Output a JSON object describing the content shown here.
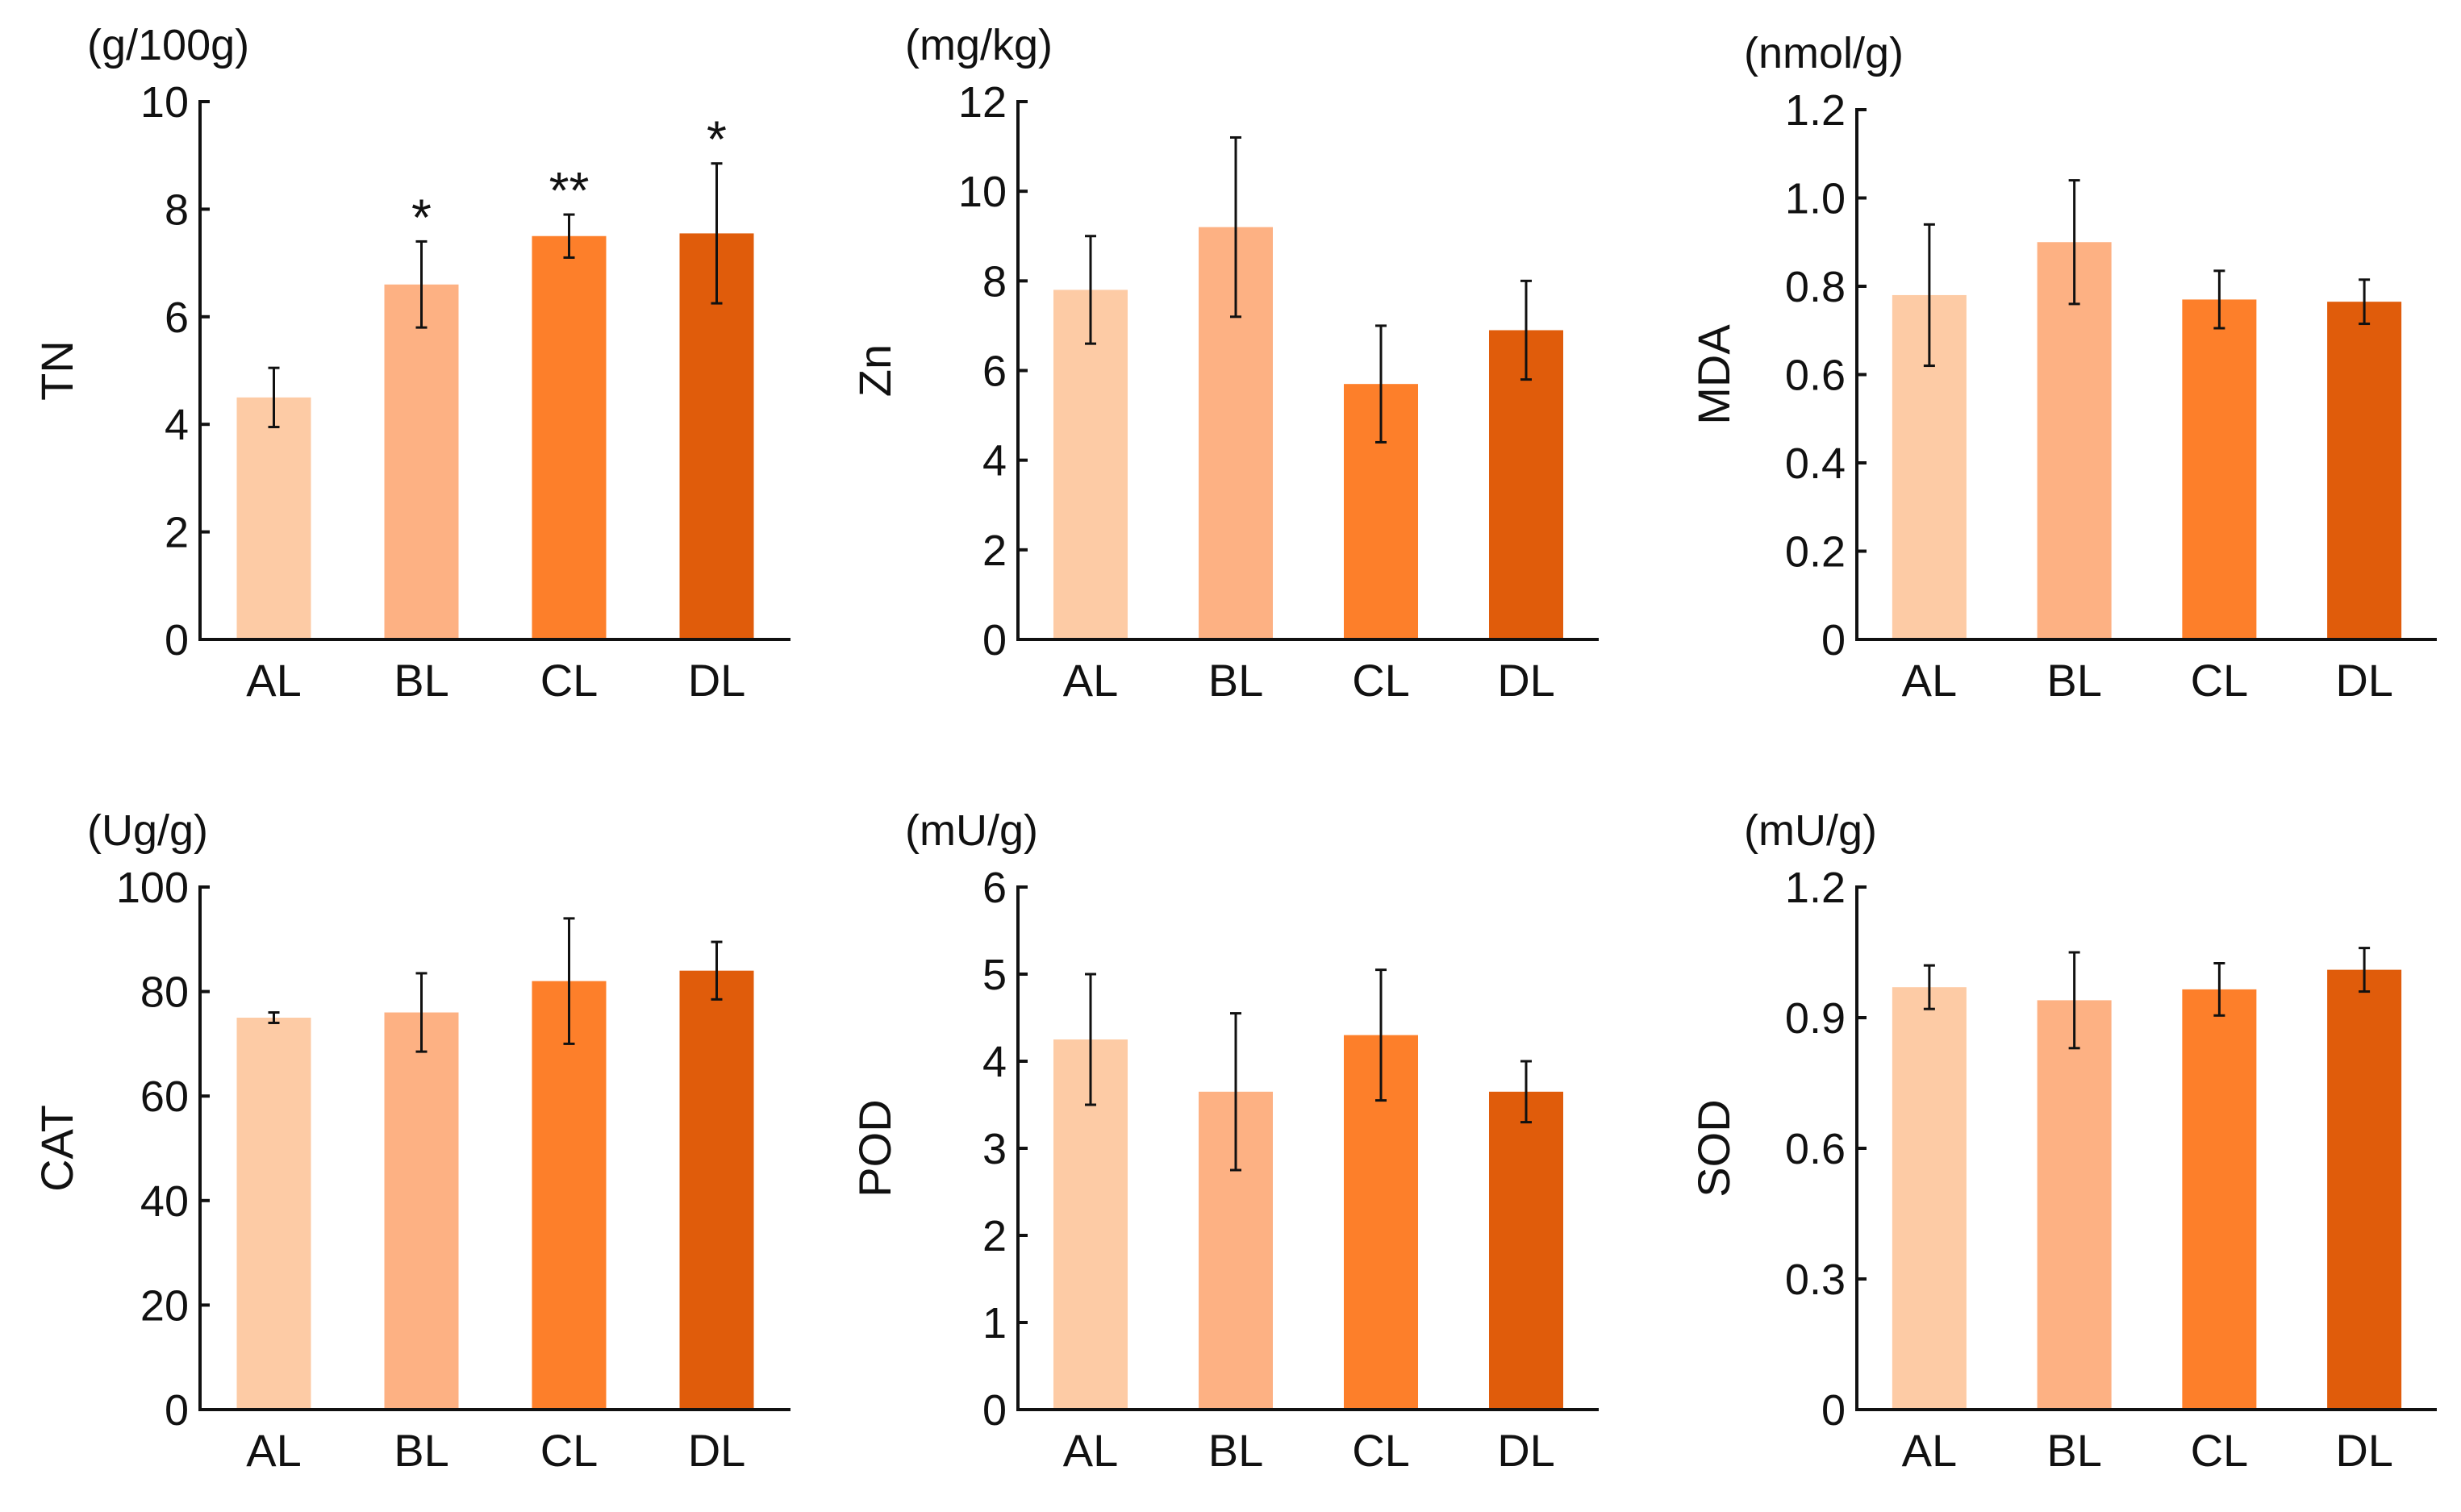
{
  "colors": {
    "AL": "#FDCBA5",
    "BL": "#FDB183",
    "CL": "#FD7F2A",
    "DL": "#E05C0B",
    "axis": "#111111"
  },
  "chart_data": [
    {
      "type": "bar",
      "categories": [
        "AL",
        "BL",
        "CL",
        "DL"
      ],
      "values": [
        4.5,
        6.6,
        7.5,
        7.55
      ],
      "errors": [
        0.55,
        0.8,
        0.4,
        1.3
      ],
      "significance": [
        "",
        "*",
        "**",
        "*"
      ],
      "unit": "(g/100g)",
      "ylabel": "TN",
      "ylim": [
        0,
        10
      ],
      "yticks": [
        "0",
        "2",
        "4",
        "6",
        "8",
        "10"
      ]
    },
    {
      "type": "bar",
      "categories": [
        "AL",
        "BL",
        "CL",
        "DL"
      ],
      "values": [
        7.8,
        9.2,
        5.7,
        6.9
      ],
      "errors": [
        1.2,
        2.0,
        1.3,
        1.1
      ],
      "significance": [
        "",
        "",
        "",
        ""
      ],
      "unit": "(mg/kg)",
      "ylabel": "Zn",
      "ylim": [
        0,
        12
      ],
      "yticks": [
        "0",
        "2",
        "4",
        "6",
        "8",
        "10",
        "12"
      ]
    },
    {
      "type": "bar",
      "categories": [
        "AL",
        "BL",
        "CL",
        "DL"
      ],
      "values": [
        0.78,
        0.9,
        0.77,
        0.765
      ],
      "errors": [
        0.16,
        0.14,
        0.065,
        0.05
      ],
      "significance": [
        "",
        "",
        "",
        ""
      ],
      "unit": "(nmol/g)",
      "ylabel": "MDA",
      "ylim": [
        0,
        1.2
      ],
      "yticks": [
        "0",
        "0.2",
        "0.4",
        "0.6",
        "0.8",
        "1.0",
        "1.2"
      ]
    },
    {
      "type": "bar",
      "categories": [
        "AL",
        "BL",
        "CL",
        "DL"
      ],
      "values": [
        75,
        76,
        82,
        84
      ],
      "errors": [
        1,
        7.5,
        12,
        5.5
      ],
      "significance": [
        "",
        "",
        "",
        ""
      ],
      "unit": "(Ug/g)",
      "ylabel": "CAT",
      "ylim": [
        0,
        100
      ],
      "yticks": [
        "0",
        "20",
        "40",
        "60",
        "80",
        "100"
      ]
    },
    {
      "type": "bar",
      "categories": [
        "AL",
        "BL",
        "CL",
        "DL"
      ],
      "values": [
        4.25,
        3.65,
        4.3,
        3.65
      ],
      "errors": [
        0.75,
        0.9,
        0.75,
        0.35
      ],
      "significance": [
        "",
        "",
        "",
        ""
      ],
      "unit": "(mU/g)",
      "ylabel": "POD",
      "ylim": [
        0,
        6
      ],
      "yticks": [
        "0",
        "1",
        "2",
        "3",
        "4",
        "5",
        "6"
      ]
    },
    {
      "type": "bar",
      "categories": [
        "AL",
        "BL",
        "CL",
        "DL"
      ],
      "values": [
        0.97,
        0.94,
        0.965,
        1.01
      ],
      "errors": [
        0.05,
        0.11,
        0.06,
        0.05
      ],
      "significance": [
        "",
        "",
        "",
        ""
      ],
      "unit": "(mU/g)",
      "ylabel": "SOD",
      "ylim": [
        0,
        1.2
      ],
      "yticks": [
        "0",
        "0.3",
        "0.6",
        "0.9",
        "1.2"
      ]
    }
  ]
}
